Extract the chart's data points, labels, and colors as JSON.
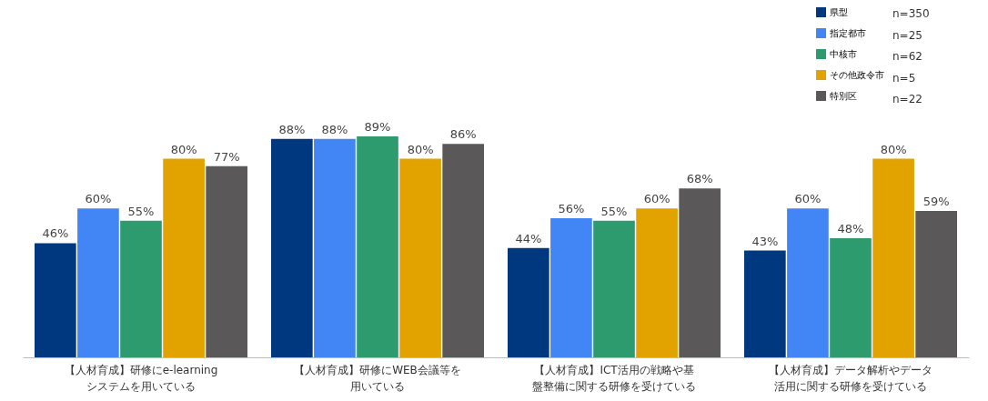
{
  "chart_data": {
    "type": "bar",
    "categories": [
      "【人材育成】研修にe-learningシステムを用いている",
      "【人材育成】研修にWEB会議等を用いている",
      "【人材育成】ICT活用の戦略や基盤整備に関する研修を受けている",
      "【人材育成】データ解析やデータ活用に関する研修を受けている"
    ],
    "series": [
      {
        "name": "県型",
        "color": "#00387f",
        "values": [
          46,
          88,
          44,
          43
        ],
        "value_labels": [
          "46%",
          "88%",
          "44%",
          "43%"
        ]
      },
      {
        "name": "指定都市",
        "color": "#4285f4",
        "values": [
          60,
          88,
          56,
          60
        ],
        "value_labels": [
          "60%",
          "88%",
          "56%",
          "60%"
        ]
      },
      {
        "name": "中核市",
        "color": "#2e9b6e",
        "values": [
          55,
          89,
          55,
          48
        ],
        "value_labels": [
          "55%",
          "89%",
          "55%",
          "48%"
        ]
      },
      {
        "name": "その他政令市",
        "color": "#e2a300",
        "values": [
          80,
          80,
          60,
          80
        ],
        "value_labels": [
          "80%",
          "80%",
          "60%",
          "80%"
        ]
      },
      {
        "name": "特別区",
        "color": "#5b5859",
        "values": [
          77,
          86,
          68,
          59
        ],
        "value_labels": [
          "77%",
          "86%",
          "68%",
          "59%"
        ]
      }
    ],
    "legend": "top right",
    "annotations": [
      "n=350",
      "n=25",
      "n=62",
      "n=5",
      "n=22"
    ]
  }
}
